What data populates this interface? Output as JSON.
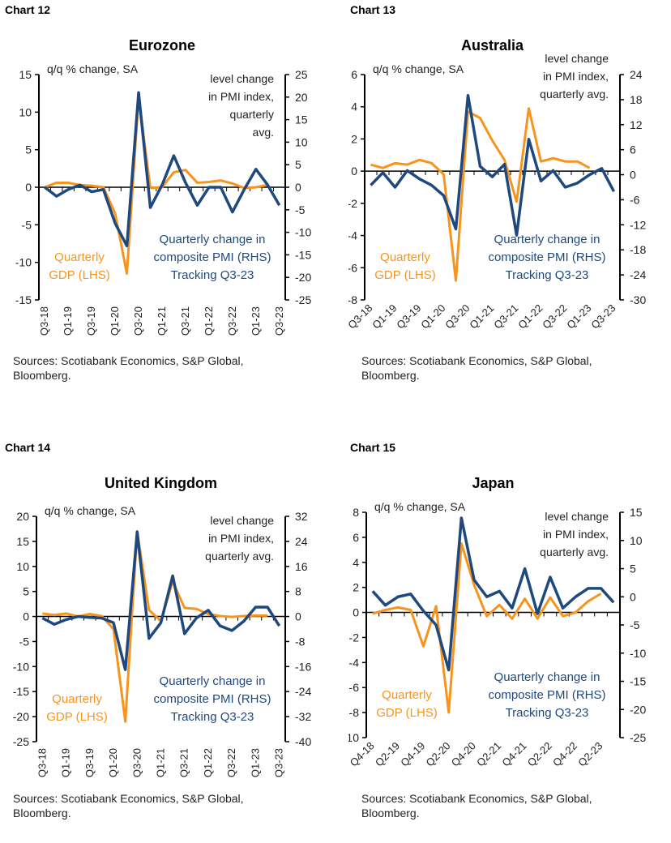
{
  "colors": {
    "gdp": "#F7941D",
    "pmi": "#1F497D"
  },
  "chart_data": [
    {
      "type": "line",
      "chart_label": "Chart 12",
      "title": "Eurozone",
      "lhs_label": "q/q % change, SA",
      "rhs_label": [
        "level change",
        "in PMI index,",
        "quarterly",
        "avg."
      ],
      "gdp_label": [
        "Quarterly",
        "GDP (LHS)"
      ],
      "pmi_label": [
        "Quarterly change in",
        "composite PMI (RHS)",
        "Tracking Q3-23"
      ],
      "ylim_left": [
        -15,
        15
      ],
      "yticks_left": [
        -15,
        -10,
        -5,
        0,
        5,
        10,
        15
      ],
      "ylim_right": [
        -25,
        25
      ],
      "yticks_right": [
        -25,
        -20,
        -15,
        -10,
        -5,
        0,
        5,
        10,
        15,
        20,
        25
      ],
      "n_quarters": 21,
      "xtick_labels": [
        "Q3-18",
        "Q1-19",
        "Q3-19",
        "Q1-20",
        "Q3-20",
        "Q1-21",
        "Q3-21",
        "Q1-22",
        "Q3-22",
        "Q1-23",
        "Q3-23"
      ],
      "label_rot": -90,
      "series": [
        {
          "name": "Quarterly GDP (LHS)",
          "axis": "left",
          "values": [
            0,
            0.6,
            0.6,
            0.3,
            0.2,
            0.0,
            -3.5,
            -11.5,
            12,
            -0.1,
            0.0,
            2.0,
            2.3,
            0.6,
            0.7,
            0.9,
            0.5,
            -0.1,
            0.0,
            0.3
          ]
        },
        {
          "name": "Quarterly change in composite PMI (RHS)",
          "axis": "right",
          "values": [
            0,
            -2,
            -0.5,
            0.5,
            -1,
            -0.5,
            -8,
            -13,
            21,
            -4.5,
            0.5,
            7,
            1,
            -4,
            0,
            0,
            -5.5,
            -0.5,
            4,
            0.5,
            -4
          ]
        }
      ],
      "source": "Sources: Scotiabank Economics, S&P Global, Bloomberg."
    },
    {
      "type": "line",
      "chart_label": "Chart 13",
      "title": "Australia",
      "lhs_label": "q/q % change, SA",
      "rhs_label": [
        "level change",
        "in PMI index,",
        "quarterly avg."
      ],
      "gdp_label": [
        "Quarterly",
        "GDP (LHS)"
      ],
      "pmi_label": [
        "Quarterly change in",
        "composite PMI (RHS)",
        "Tracking Q3-23"
      ],
      "ylim_left": [
        -8,
        6
      ],
      "yticks_left": [
        -8,
        -6,
        -4,
        -2,
        0,
        2,
        4,
        6
      ],
      "ylim_right": [
        -30,
        24
      ],
      "yticks_right": [
        -30,
        -24,
        -18,
        -12,
        -6,
        0,
        6,
        12,
        18,
        24
      ],
      "n_quarters": 21,
      "xtick_labels": [
        "Q3-18",
        "Q1-19",
        "Q3-19",
        "Q1-20",
        "Q3-20",
        "Q1-21",
        "Q3-21",
        "Q1-22",
        "Q3-22",
        "Q1-23",
        "Q3-23"
      ],
      "label_rot": -45,
      "series": [
        {
          "name": "Quarterly GDP (LHS)",
          "axis": "left",
          "values": [
            0.4,
            0.2,
            0.5,
            0.4,
            0.7,
            0.5,
            -0.2,
            -6.8,
            3.7,
            3.3,
            1.9,
            0.7,
            -1.9,
            3.9,
            0.6,
            0.8,
            0.6,
            0.6,
            0.2
          ]
        },
        {
          "name": "Quarterly change in composite PMI (RHS)",
          "axis": "right",
          "values": [
            -2.5,
            0.5,
            -3,
            1,
            -1,
            -2.5,
            -5,
            -13,
            19,
            2,
            -0.5,
            2.5,
            -14.5,
            8.5,
            -1.5,
            1,
            -3,
            -2,
            0,
            1.5,
            -4
          ]
        }
      ],
      "source": "Sources: Scotiabank Economics, S&P Global, Bloomberg."
    },
    {
      "type": "line",
      "chart_label": "Chart 14",
      "title": "United Kingdom",
      "lhs_label": "q/q % change, SA",
      "rhs_label": [
        "level change",
        "in PMI index,",
        "quarterly avg."
      ],
      "gdp_label": [
        "Quarterly",
        "GDP (LHS)"
      ],
      "pmi_label": [
        "Quarterly change in",
        "composite PMI (RHS)",
        "Tracking Q3-23"
      ],
      "ylim_left": [
        -25,
        20
      ],
      "yticks_left": [
        -25,
        -20,
        -15,
        -10,
        -5,
        0,
        5,
        10,
        15,
        20
      ],
      "ylim_right": [
        -40,
        32
      ],
      "yticks_right": [
        -40,
        -32,
        -24,
        -16,
        -8,
        0,
        8,
        16,
        24,
        32
      ],
      "n_quarters": 21,
      "xtick_labels": [
        "Q3-18",
        "Q1-19",
        "Q3-19",
        "Q1-20",
        "Q3-20",
        "Q1-21",
        "Q3-21",
        "Q1-22",
        "Q3-22",
        "Q1-23",
        "Q3-23"
      ],
      "label_rot": -90,
      "series": [
        {
          "name": "Quarterly GDP (LHS)",
          "axis": "left",
          "values": [
            0.6,
            0.3,
            0.6,
            0.0,
            0.5,
            0.1,
            -2.5,
            -21,
            17,
            1.3,
            -0.9,
            7,
            1.7,
            1.5,
            0.5,
            0.1,
            -0.1,
            0.1,
            0.2,
            0.2
          ]
        },
        {
          "name": "Quarterly change in composite PMI (RHS)",
          "axis": "right",
          "values": [
            -0.5,
            -2.5,
            -1,
            0,
            -0.3,
            -0.5,
            -2,
            -17,
            27,
            -7,
            -2,
            13,
            -5.5,
            -0.5,
            2,
            -3,
            -4.5,
            -1.5,
            3,
            3,
            -3
          ]
        }
      ],
      "source": "Sources: Scotiabank Economics, S&P Global, Bloomberg."
    },
    {
      "type": "line",
      "chart_label": "Chart 15",
      "title": "Japan",
      "lhs_label": "q/q % change, SA",
      "rhs_label": [
        "level change",
        "in PMI index,",
        "quarterly avg."
      ],
      "gdp_label": [
        "Quarterly",
        "GDP (LHS)"
      ],
      "pmi_label": [
        "Quarterly change in",
        "composite PMI (RHS)",
        "Tracking Q3-23"
      ],
      "ylim_left": [
        -10,
        8
      ],
      "yticks_left": [
        -10,
        -8,
        -6,
        -4,
        -2,
        0,
        2,
        4,
        6,
        8
      ],
      "ylim_right": [
        -25,
        15
      ],
      "yticks_right": [
        -25,
        -20,
        -15,
        -10,
        -5,
        0,
        5,
        10,
        15
      ],
      "n_quarters": 20,
      "xtick_labels": [
        "Q4-18",
        "Q2-19",
        "Q4-19",
        "Q2-20",
        "Q4-20",
        "Q2-21",
        "Q4-21",
        "Q2-22",
        "Q4-22",
        "Q2-23"
      ],
      "label_rot": -45,
      "series": [
        {
          "name": "Quarterly GDP (LHS)",
          "axis": "left",
          "values": [
            -0.1,
            0.2,
            0.4,
            0.2,
            -2.7,
            0.5,
            -8,
            5.5,
            2.2,
            -0.3,
            0.6,
            -0.5,
            1.1,
            -0.5,
            1.2,
            -0.3,
            0.0,
            0.9,
            1.5
          ]
        },
        {
          "name": "Quarterly change in composite PMI (RHS)",
          "axis": "right",
          "values": [
            1,
            -1.5,
            0,
            0.5,
            -2.5,
            -5,
            -13,
            14,
            3,
            0,
            1,
            -2,
            5,
            -3,
            3.5,
            -2,
            0,
            1.5,
            1.5,
            -1
          ]
        }
      ],
      "source": "Sources: Scotiabank Economics, S&P Global, Bloomberg."
    }
  ]
}
